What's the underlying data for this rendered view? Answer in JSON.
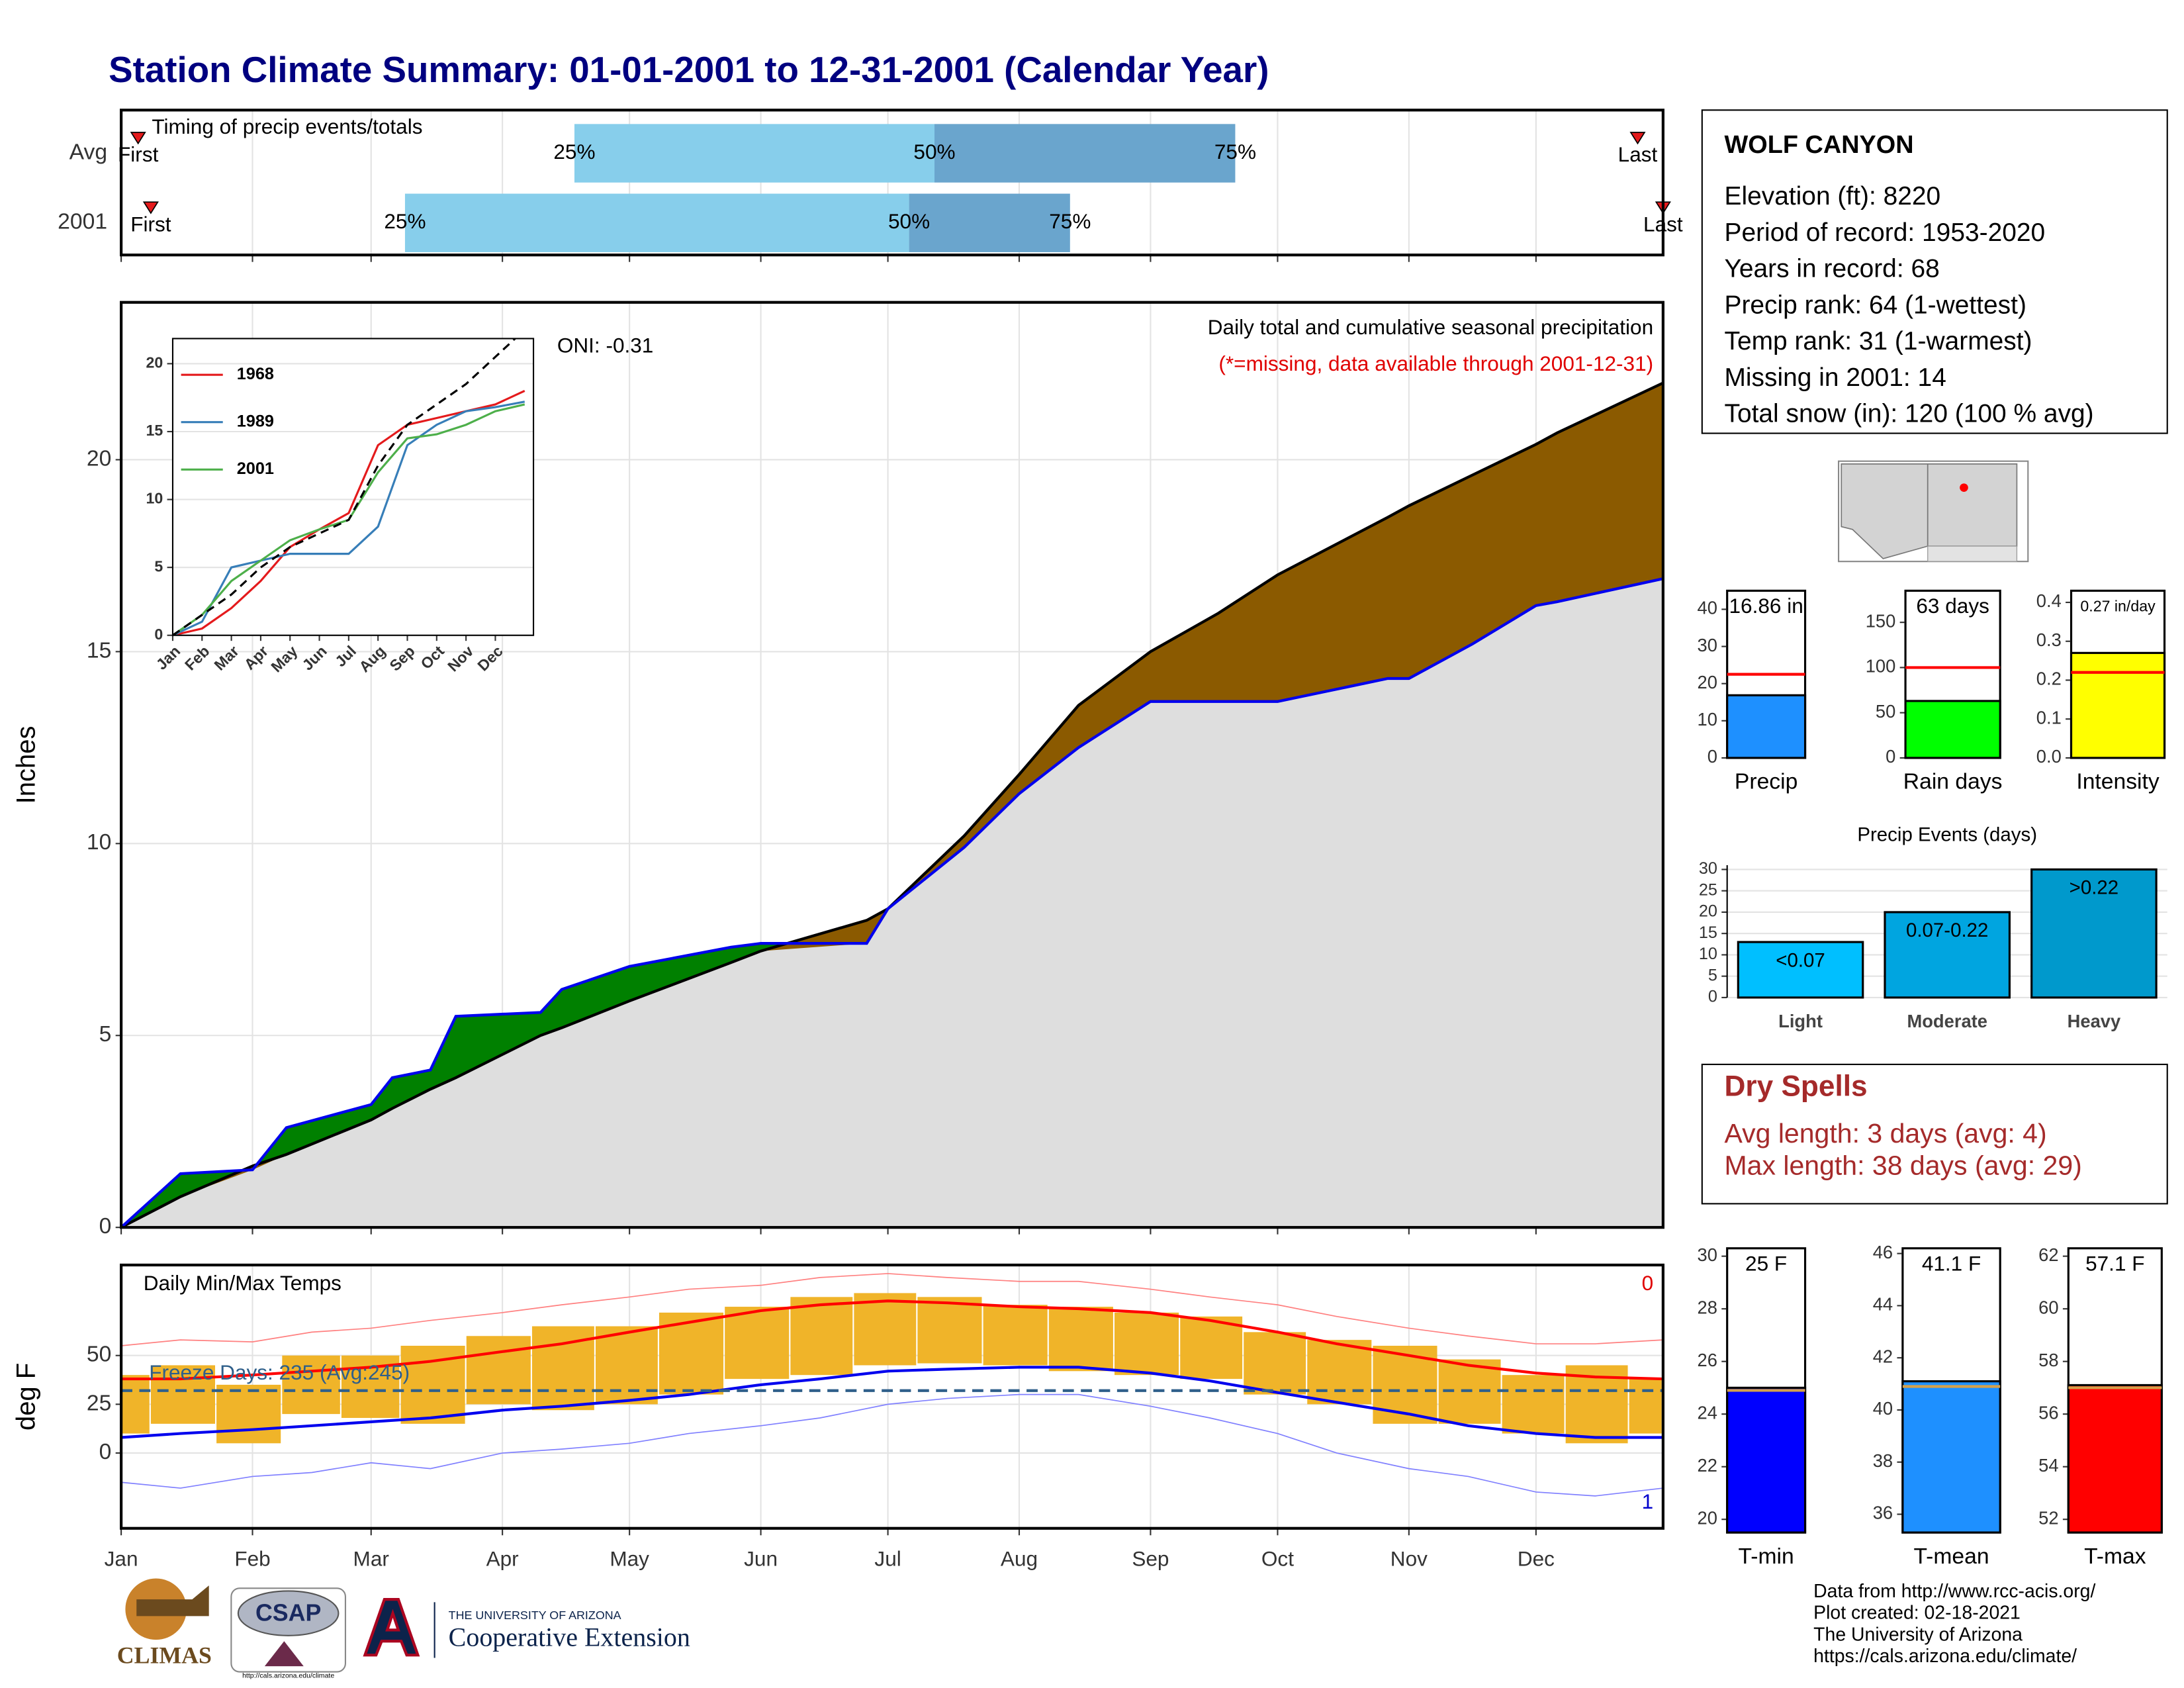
{
  "title": "Station Climate Summary: 01-01-2001 to 12-31-2001 (Calendar Year)",
  "chart_data": [
    {
      "type": "timing",
      "title": "Timing of precip events/totals",
      "categories": [
        "Avg",
        "2001"
      ],
      "xlim": [
        1,
        365
      ],
      "xticks": [
        1,
        32,
        60,
        91,
        121,
        152,
        182,
        213,
        244,
        274,
        305,
        335
      ],
      "markers": [
        {
          "label": "First",
          "values": [
            5,
            8
          ]
        },
        {
          "label": "25%",
          "values": [
            108,
            68
          ]
        },
        {
          "label": "50%",
          "values": [
            193,
            187
          ]
        },
        {
          "label": "75%",
          "values": [
            264,
            225
          ]
        },
        {
          "label": "Last",
          "values": [
            359,
            365
          ]
        }
      ],
      "colors": [
        "#87ceeb",
        "#6aa5cd"
      ],
      "marker_color": "#e41a1c"
    },
    {
      "type": "area",
      "ylabel": "Inches",
      "annotations": [
        "Daily total and cumulative seasonal precipitation",
        "(*=missing, data available through 2001-12-31)"
      ],
      "oni": "ONI: -0.31",
      "xlim": [
        1,
        365
      ],
      "xticks": [
        1,
        32,
        60,
        91,
        121,
        152,
        182,
        213,
        244,
        274,
        305,
        335
      ],
      "ylim": [
        0,
        24.1
      ],
      "yticks": [
        0,
        5,
        10,
        15,
        20
      ],
      "grid": true,
      "x": [
        1,
        15,
        32,
        40,
        60,
        65,
        74,
        80,
        100,
        105,
        121,
        145,
        152,
        177,
        182,
        200,
        213,
        227,
        244,
        260,
        274,
        300,
        305,
        320,
        335,
        340,
        365
      ],
      "series": [
        {
          "color": "#000000",
          "fill": "#8b5a00",
          "values": [
            0,
            0.8,
            1.6,
            1.9,
            2.8,
            3.1,
            3.6,
            3.9,
            5.0,
            5.2,
            5.9,
            6.9,
            7.2,
            8.0,
            8.3,
            10.2,
            11.8,
            13.6,
            15.0,
            16.0,
            17.0,
            18.5,
            18.8,
            19.6,
            20.4,
            20.7,
            22.0
          ]
        },
        {
          "color": "#0000ee",
          "fill": "#008000",
          "values": [
            0,
            1.4,
            1.5,
            2.6,
            3.2,
            3.9,
            4.1,
            5.5,
            5.6,
            6.2,
            6.8,
            7.3,
            7.4,
            7.4,
            8.3,
            9.9,
            11.3,
            12.5,
            13.7,
            13.7,
            13.7,
            14.3,
            14.3,
            15.2,
            16.2,
            16.3,
            16.9
          ]
        }
      ],
      "base_color": "#dedede"
    },
    {
      "type": "line",
      "xlim": [
        0,
        12.3
      ],
      "ylim": [
        0,
        21.85
      ],
      "yticks": [
        0,
        5,
        10,
        15,
        20
      ],
      "xticks": [
        {
          "value": 0,
          "label": "Jan"
        },
        {
          "value": 1,
          "label": "Feb"
        },
        {
          "value": 2,
          "label": "Mar"
        },
        {
          "value": 3,
          "label": "Apr"
        },
        {
          "value": 4,
          "label": "May"
        },
        {
          "value": 5,
          "label": "Jun"
        },
        {
          "value": 6,
          "label": "Jul"
        },
        {
          "value": 7,
          "label": "Aug"
        },
        {
          "value": 8,
          "label": "Sep"
        },
        {
          "value": 9,
          "label": "Oct"
        },
        {
          "value": 10,
          "label": "Nov"
        },
        {
          "value": 11,
          "label": "Dec"
        }
      ],
      "x": [
        0,
        1,
        2,
        3,
        4,
        5,
        6,
        7,
        8,
        9,
        10,
        11,
        12
      ],
      "series": [
        {
          "name": "1968",
          "color": "#e41a1c",
          "values": [
            0,
            0.5,
            2,
            4,
            6.5,
            7.8,
            9,
            14,
            15.5,
            16,
            16.5,
            17,
            18
          ]
        },
        {
          "name": "1989",
          "color": "#377eb8",
          "values": [
            0,
            1,
            5,
            5.5,
            6,
            6,
            6,
            8,
            14,
            15.5,
            16.5,
            16.8,
            17.2
          ]
        },
        {
          "name": "2001",
          "color": "#4daf4a",
          "values": [
            0,
            1.5,
            4,
            5.5,
            7,
            7.8,
            8.5,
            12,
            14.5,
            14.8,
            15.5,
            16.5,
            17
          ]
        }
      ],
      "reference": {
        "color": "#000000",
        "values": [
          0,
          1.5,
          3,
          5,
          6.5,
          7.5,
          8.5,
          12.5,
          15.5,
          17,
          18.5,
          20.5,
          22.5
        ]
      }
    },
    {
      "type": "bar",
      "categories": [
        "Precip"
      ],
      "values": [
        16.86
      ],
      "value_labels": [
        "16.86 in"
      ],
      "avg": 22.5,
      "avg_color": "#ff0000",
      "color": "#1e90ff",
      "ylim": [
        0,
        45
      ],
      "yticks": [
        0,
        10,
        20,
        30,
        40
      ]
    },
    {
      "type": "bar",
      "categories": [
        "Rain days"
      ],
      "values": [
        63
      ],
      "value_labels": [
        "63 days"
      ],
      "avg": 100,
      "avg_color": "#ff0000",
      "color": "#00ff00",
      "ylim": [
        0,
        185
      ],
      "yticks": [
        0,
        50,
        100,
        150
      ]
    },
    {
      "type": "bar",
      "categories": [
        "Intensity"
      ],
      "values": [
        0.27
      ],
      "value_labels": [
        "0.27 in/day"
      ],
      "avg": 0.22,
      "avg_color": "#ff0000",
      "color": "#ffff00",
      "ylim": [
        0,
        0.43
      ],
      "yticks": [
        {
          "value": 0,
          "label": "0.0"
        },
        0.1,
        0.2,
        0.3,
        0.4
      ]
    },
    {
      "type": "bar",
      "title": "Precip Events (days)",
      "categories": [
        "Light",
        "Moderate",
        "Heavy"
      ],
      "values": [
        13,
        20,
        30
      ],
      "range_labels": [
        "<0.07",
        "0.07-0.22",
        ">0.22"
      ],
      "colors": [
        "#00bfff",
        "#00a5e0",
        "#0099cc"
      ],
      "ylim": [
        0,
        31
      ],
      "yticks": [
        0,
        5,
        10,
        15,
        20,
        25,
        30
      ],
      "grid": true
    },
    {
      "type": "temps",
      "title": "Daily Min/Max Temps",
      "ylabel": "deg F",
      "annotation": "Freeze Days: 235 (Avg:245)",
      "record_counts": [
        "0",
        "1"
      ],
      "xlim": [
        1,
        365
      ],
      "ylim": [
        -38.6,
        96.4
      ],
      "yticks": [
        0,
        25,
        50
      ],
      "grid": true,
      "xticks": [
        {
          "value": 1,
          "label": "Jan"
        },
        {
          "value": 32,
          "label": "Feb"
        },
        {
          "value": 60,
          "label": "Mar"
        },
        {
          "value": 91,
          "label": "Apr"
        },
        {
          "value": 121,
          "label": "May"
        },
        {
          "value": 152,
          "label": "Jun"
        },
        {
          "value": 182,
          "label": "Jul"
        },
        {
          "value": 213,
          "label": "Aug"
        },
        {
          "value": 244,
          "label": "Sep"
        },
        {
          "value": 274,
          "label": "Oct"
        },
        {
          "value": 305,
          "label": "Nov"
        },
        {
          "value": 335,
          "label": "Dec"
        }
      ],
      "x": [
        1,
        15,
        32,
        46,
        60,
        74,
        91,
        105,
        121,
        135,
        152,
        166,
        182,
        196,
        213,
        227,
        244,
        258,
        274,
        288,
        305,
        319,
        335,
        349,
        365
      ],
      "lows": [
        10,
        15,
        5,
        20,
        18,
        15,
        25,
        22,
        25,
        30,
        38,
        40,
        45,
        46,
        45,
        42,
        40,
        38,
        30,
        25,
        15,
        15,
        10,
        5,
        10
      ],
      "highs": [
        40,
        45,
        35,
        50,
        50,
        55,
        60,
        65,
        65,
        72,
        75,
        80,
        82,
        80,
        76,
        75,
        72,
        70,
        62,
        58,
        55,
        48,
        40,
        45,
        38
      ],
      "bar_color": "#f0b429",
      "series": [
        {
          "color": "#ff0000",
          "width": 2,
          "values": [
            38,
            38,
            40,
            42,
            44,
            47,
            52,
            56,
            62,
            67,
            73,
            76,
            78,
            77,
            75,
            74,
            72,
            68,
            62,
            56,
            50,
            45,
            41,
            39,
            38
          ]
        },
        {
          "color": "#0000ee",
          "width": 2,
          "values": [
            8,
            10,
            12,
            14,
            16,
            18,
            22,
            24,
            27,
            30,
            35,
            38,
            42,
            43,
            44,
            44,
            41,
            37,
            31,
            26,
            20,
            14,
            10,
            8,
            8
          ]
        },
        {
          "color": "#ff8080",
          "width": 0.8,
          "values": [
            55,
            58,
            57,
            62,
            64,
            68,
            72,
            76,
            80,
            84,
            86,
            90,
            92,
            90,
            88,
            88,
            84,
            80,
            76,
            70,
            64,
            60,
            56,
            56,
            58
          ]
        },
        {
          "color": "#8080ff",
          "width": 0.8,
          "values": [
            -15,
            -18,
            -12,
            -10,
            -5,
            -8,
            0,
            2,
            5,
            10,
            14,
            18,
            25,
            28,
            30,
            30,
            24,
            18,
            10,
            0,
            -8,
            -12,
            -20,
            -22,
            -18
          ]
        }
      ],
      "freeze_line": 32,
      "freeze_color": "#2f5f8a"
    },
    {
      "type": "bar",
      "categories": [
        "T-min"
      ],
      "values": [
        25
      ],
      "value_labels": [
        "25 F"
      ],
      "avg": 24.9,
      "avg_color": "#d4a04a",
      "color": "#0000ff",
      "ylim": [
        19.5,
        30.3
      ],
      "yticks": [
        20,
        22,
        24,
        26,
        28,
        30
      ]
    },
    {
      "type": "bar",
      "categories": [
        "T-mean"
      ],
      "values": [
        41.1
      ],
      "value_labels": [
        "41.1 F"
      ],
      "avg": 40.9,
      "avg_color": "#d4a04a",
      "color": "#1e90ff",
      "ylim": [
        35.3,
        46.2
      ],
      "yticks": [
        36,
        38,
        40,
        42,
        44,
        46
      ]
    },
    {
      "type": "bar",
      "categories": [
        "T-max"
      ],
      "values": [
        57.1
      ],
      "value_labels": [
        "57.1 F"
      ],
      "avg": 57,
      "avg_color": "#d4a04a",
      "color": "#ff0000",
      "ylim": [
        51.5,
        62.3
      ],
      "yticks": [
        52,
        54,
        56,
        58,
        60,
        62
      ]
    }
  ],
  "station": {
    "name": "WOLF CANYON",
    "lines": [
      "Elevation (ft): 8220",
      "Period of record: 1953-2020",
      "Years in record: 68",
      "Precip rank: 64 (1-wettest)",
      "Temp rank: 31 (1-warmest)",
      "Missing in 2001: 14",
      "Total snow (in): 120 (100 % avg)"
    ]
  },
  "dry_spells": {
    "title": "Dry Spells",
    "lines": [
      "Avg length: 3 days (avg: 4)",
      "Max length: 38 days (avg: 29)"
    ]
  },
  "footer": [
    "Data from http://www.rcc-acis.org/",
    "Plot created: 02-18-2021",
    "The University of Arizona",
    "https://cals.arizona.edu/climate/"
  ],
  "logos": {
    "climas": "CLIMAS",
    "csap": "CSAP",
    "csap_url": "http://cals.arizona.edu/climate",
    "ua": "THE UNIVERSITY OF ARIZONA",
    "extension": "Cooperative Extension"
  }
}
